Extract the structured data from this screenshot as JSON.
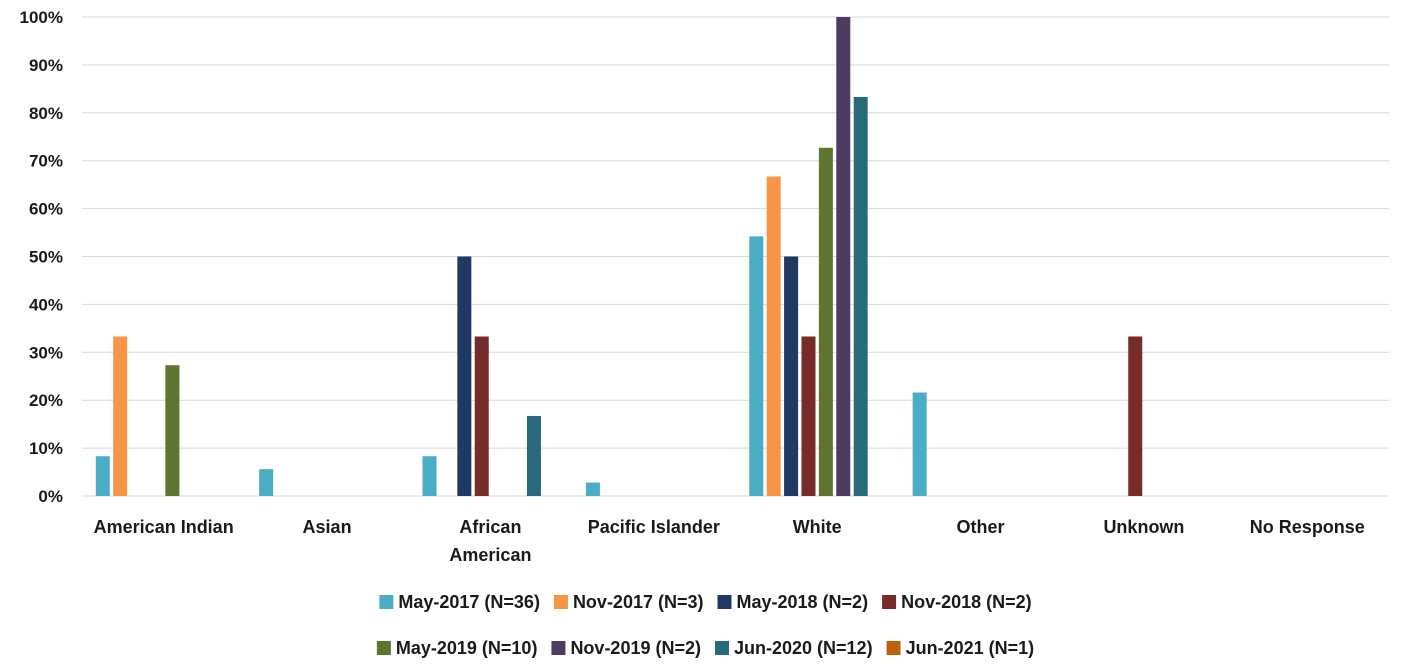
{
  "chart_data": {
    "type": "bar",
    "title": "",
    "xlabel": "",
    "ylabel": "",
    "ylim": [
      0,
      100
    ],
    "yticks": [
      "0%",
      "10%",
      "20%",
      "30%",
      "40%",
      "50%",
      "60%",
      "70%",
      "80%",
      "90%",
      "100%"
    ],
    "grid": true,
    "legend_position": "bottom",
    "categories": [
      [
        "American Indian"
      ],
      [
        "Asian"
      ],
      [
        "African",
        "American"
      ],
      [
        "Pacific Islander"
      ],
      [
        "White"
      ],
      [
        "Other"
      ],
      [
        "Unknown"
      ],
      [
        "No Response"
      ]
    ],
    "series": [
      {
        "name": "May-2017 (N=36)",
        "color": "#4bacc6",
        "values": [
          8.3,
          5.6,
          8.3,
          2.8,
          54.2,
          21.6,
          0,
          0
        ]
      },
      {
        "name": "Nov-2017 (N=3)",
        "color": "#f79646",
        "values": [
          33.3,
          0,
          0,
          0,
          66.7,
          0,
          0,
          0
        ]
      },
      {
        "name": "May-2018 (N=2)",
        "color": "#1f3864",
        "values": [
          0,
          0,
          50,
          0,
          50,
          0,
          0,
          0
        ]
      },
      {
        "name": "Nov-2018 (N=2)",
        "color": "#772c2a",
        "values": [
          0,
          0,
          33.3,
          0,
          33.3,
          0,
          33.3,
          0
        ]
      },
      {
        "name": "May-2019 (N=10)",
        "color": "#5e7530",
        "values": [
          27.3,
          0,
          0,
          0,
          72.7,
          0,
          0,
          0
        ]
      },
      {
        "name": "Nov-2019 (N=2)",
        "color": "#4d3b62",
        "values": [
          0,
          0,
          0,
          0,
          100,
          0,
          0,
          0
        ]
      },
      {
        "name": "Jun-2020 (N=12)",
        "color": "#276a7c",
        "values": [
          0,
          0,
          16.7,
          0,
          83.3,
          0,
          0,
          0
        ]
      },
      {
        "name": "Jun-2021 (N=1)",
        "color": "#c0600f",
        "values": [
          0,
          0,
          0,
          0,
          0,
          0,
          0,
          0
        ]
      }
    ]
  }
}
